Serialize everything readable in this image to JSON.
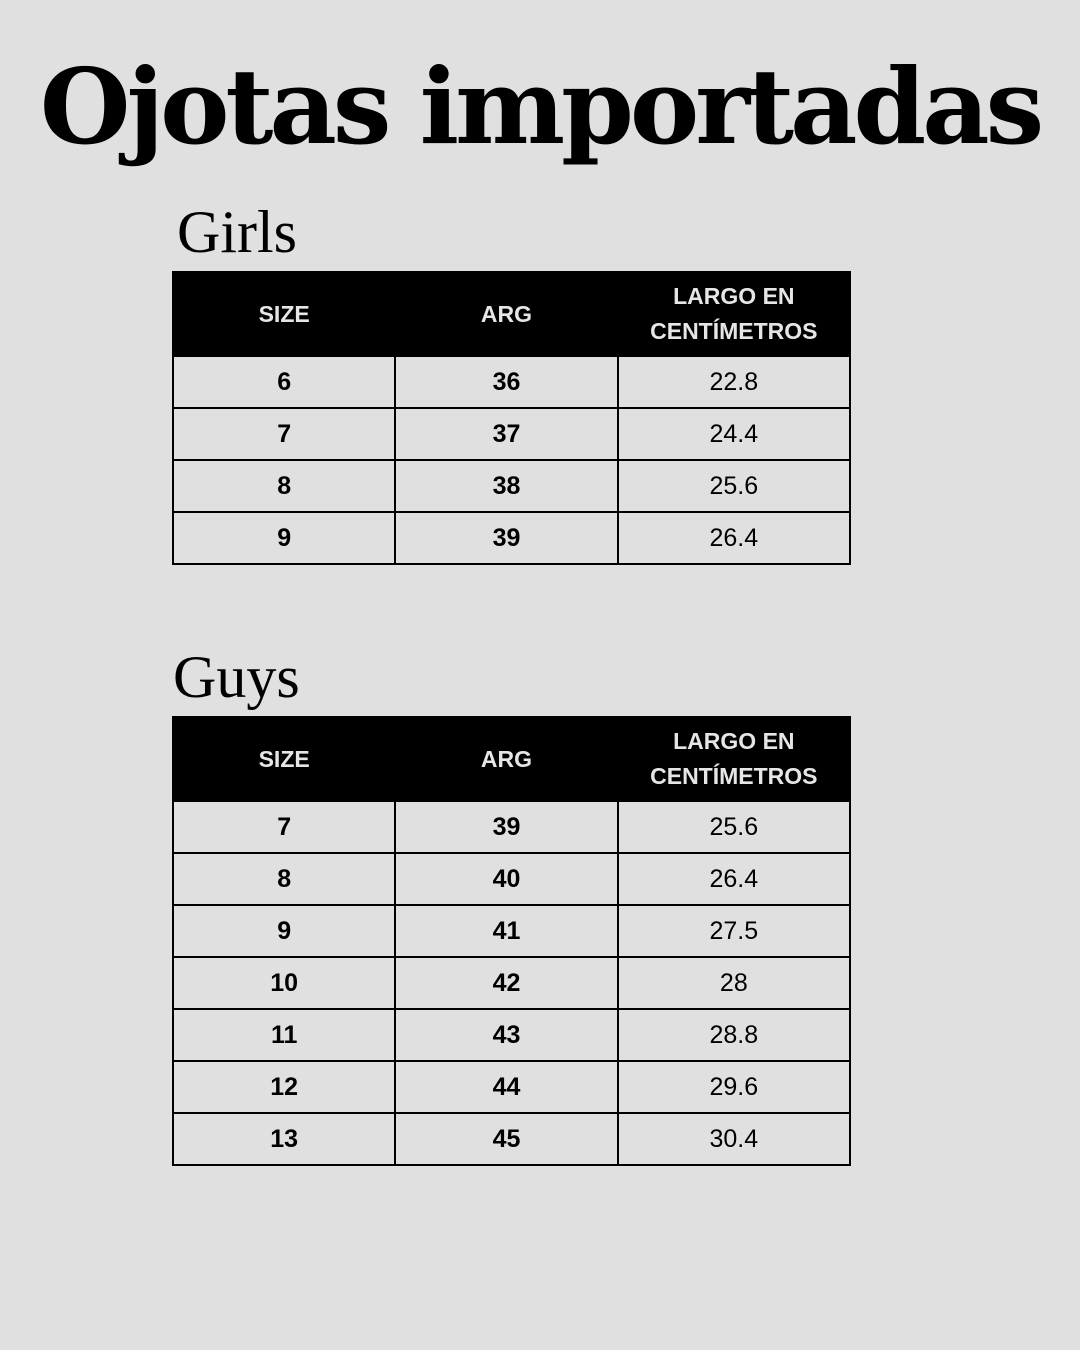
{
  "title": "Ojotas importadas",
  "tables": [
    {
      "heading": "Girls",
      "columns": [
        "SIZE",
        "ARG",
        "LARGO EN CENTÍMETROS"
      ],
      "rows": [
        [
          "6",
          "36",
          "22.8"
        ],
        [
          "7",
          "37",
          "24.4"
        ],
        [
          "8",
          "38",
          "25.6"
        ],
        [
          "9",
          "39",
          "26.4"
        ]
      ]
    },
    {
      "heading": "Guys",
      "columns": [
        "SIZE",
        "ARG",
        "LARGO EN CENTÍMETROS"
      ],
      "rows": [
        [
          "7",
          "39",
          "25.6"
        ],
        [
          "8",
          "40",
          "26.4"
        ],
        [
          "9",
          "41",
          "27.5"
        ],
        [
          "10",
          "42",
          "28"
        ],
        [
          "11",
          "43",
          "28.8"
        ],
        [
          "12",
          "44",
          "29.6"
        ],
        [
          "13",
          "45",
          "30.4"
        ]
      ]
    }
  ]
}
